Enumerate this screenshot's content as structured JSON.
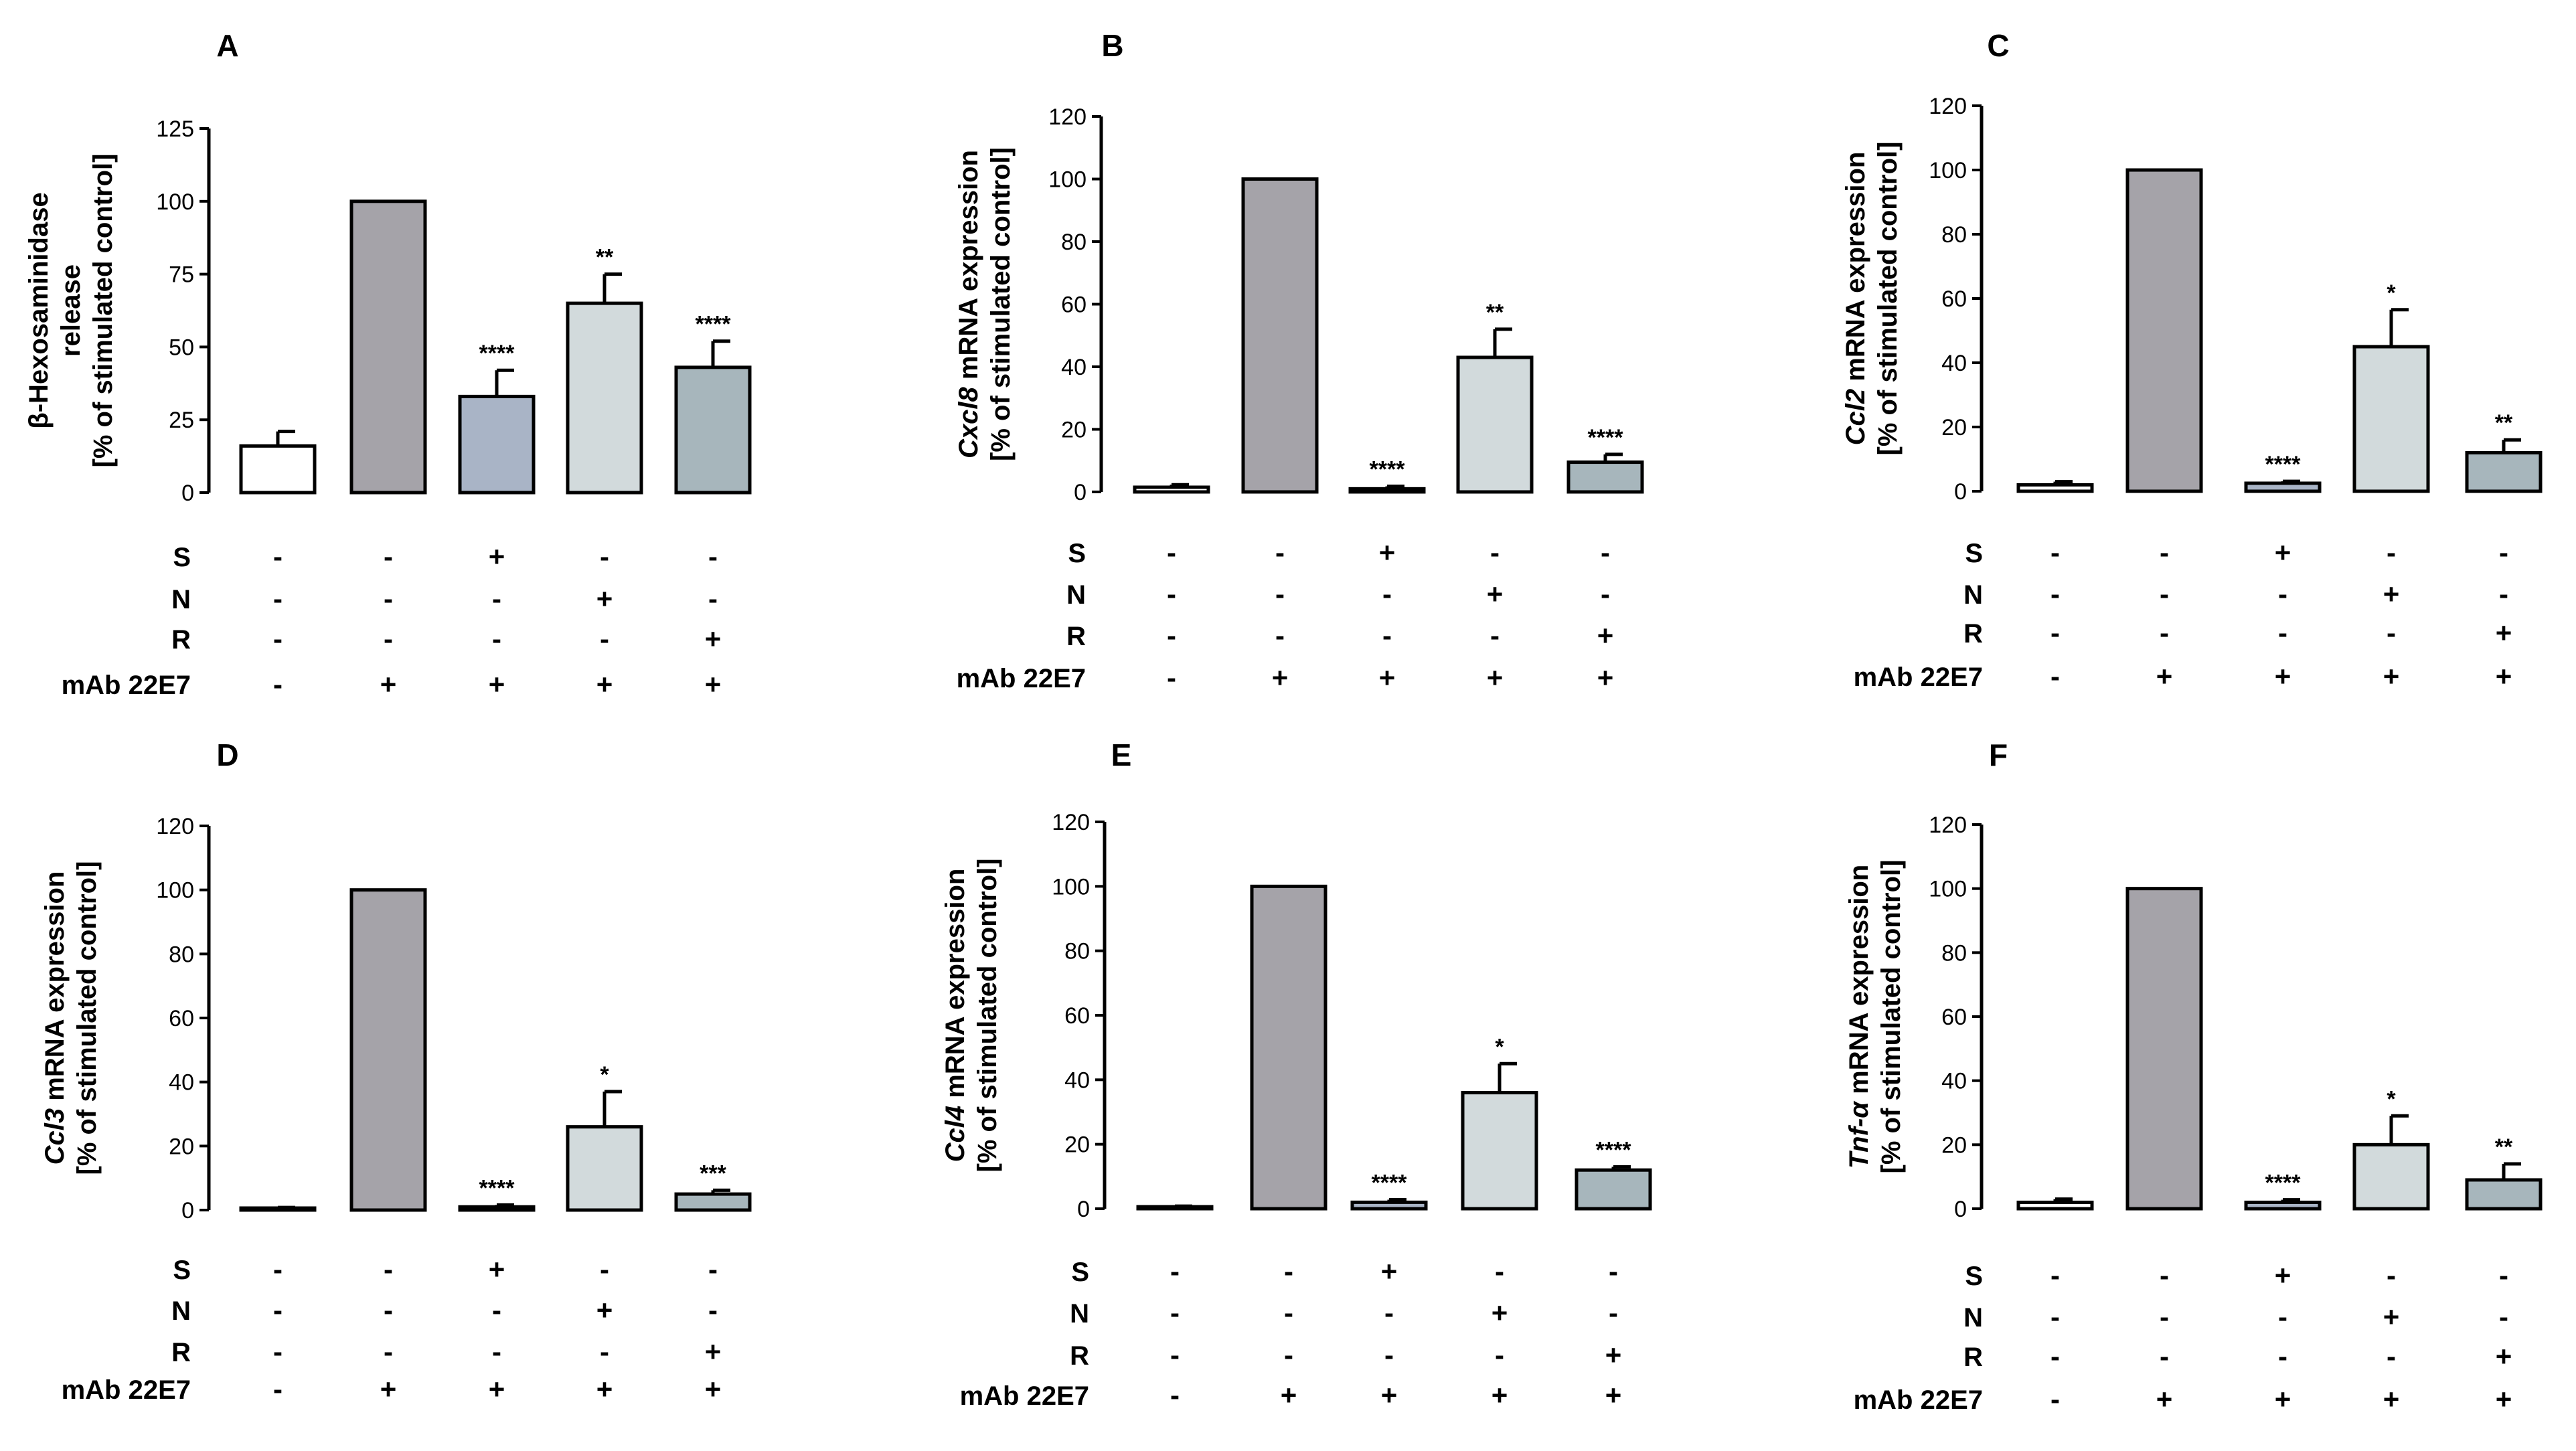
{
  "colors": {
    "axis": "#000000",
    "bar_fills": [
      "#ffffff",
      "#a5a3a9",
      "#a9b4c6",
      "#d2dadc",
      "#a7b6bc"
    ],
    "bar_stroke": "#000000"
  },
  "treatment_labels": [
    "S",
    "N",
    "R",
    "mAb 22E7"
  ],
  "treatment_matrix": [
    [
      "-",
      "-",
      "+",
      "-",
      "-"
    ],
    [
      "-",
      "-",
      "-",
      "+",
      "-"
    ],
    [
      "-",
      "-",
      "-",
      "-",
      "+"
    ],
    [
      "-",
      "+",
      "+",
      "+",
      "+"
    ]
  ],
  "chart_data": [
    {
      "type": "bar",
      "panel": "A",
      "ylabel": "β-Hexosaminidase\nrelease\n[% of stimulated control]",
      "ylabel_italic": "",
      "ylim": [
        0,
        125
      ],
      "yticks": [
        0,
        25,
        50,
        75,
        100,
        125
      ],
      "values": [
        16,
        100,
        33,
        65,
        43
      ],
      "errors": [
        5,
        0,
        9,
        10,
        9
      ],
      "significance": [
        "",
        "",
        "****",
        "**",
        "****"
      ]
    },
    {
      "type": "bar",
      "panel": "B",
      "ylabel": " mRNA expression\n[% of stimulated control]",
      "ylabel_italic": "Cxcl8",
      "ylim": [
        0,
        120
      ],
      "yticks": [
        0,
        20,
        40,
        60,
        80,
        100,
        120
      ],
      "values": [
        1.5,
        100,
        1,
        43,
        9.5
      ],
      "errors": [
        0.8,
        0,
        0.8,
        9,
        2.5
      ],
      "significance": [
        "",
        "",
        "****",
        "**",
        "****"
      ]
    },
    {
      "type": "bar",
      "panel": "C",
      "ylabel": " mRNA expression\n[% of stimulated control]",
      "ylabel_italic": "Ccl2",
      "ylim": [
        0,
        120
      ],
      "yticks": [
        0,
        20,
        40,
        60,
        80,
        100,
        120
      ],
      "values": [
        2,
        100,
        2.5,
        45,
        12
      ],
      "errors": [
        1,
        0,
        0.6,
        11.5,
        4
      ],
      "significance": [
        "",
        "",
        "****",
        "*",
        "**"
      ]
    },
    {
      "type": "bar",
      "panel": "D",
      "ylabel": " mRNA expression\n[% of stimulated control]",
      "ylabel_italic": "Ccl3",
      "ylim": [
        0,
        120
      ],
      "yticks": [
        0,
        20,
        40,
        60,
        80,
        100,
        120
      ],
      "values": [
        0.5,
        100,
        1,
        26,
        5
      ],
      "errors": [
        0.3,
        0,
        0.6,
        11,
        1.2
      ],
      "significance": [
        "",
        "",
        "****",
        "*",
        "***"
      ]
    },
    {
      "type": "bar",
      "panel": "E",
      "ylabel": " mRNA expression\n[% of stimulated control]",
      "ylabel_italic": "Ccl4",
      "ylim": [
        0,
        120
      ],
      "yticks": [
        0,
        20,
        40,
        60,
        80,
        100,
        120
      ],
      "values": [
        0.5,
        100,
        2,
        36,
        12
      ],
      "errors": [
        0.3,
        0,
        0.8,
        9,
        1
      ],
      "significance": [
        "",
        "",
        "****",
        "*",
        "****"
      ]
    },
    {
      "type": "bar",
      "panel": "F",
      "ylabel": " mRNA expression\n[% of stimulated control]",
      "ylabel_italic": "Tnf-α",
      "ylim": [
        0,
        120
      ],
      "yticks": [
        0,
        20,
        40,
        60,
        80,
        100,
        120
      ],
      "values": [
        2,
        100,
        2,
        20,
        9
      ],
      "errors": [
        1,
        0,
        0.8,
        9,
        5
      ],
      "significance": [
        "",
        "",
        "****",
        "*",
        "**"
      ]
    }
  ]
}
